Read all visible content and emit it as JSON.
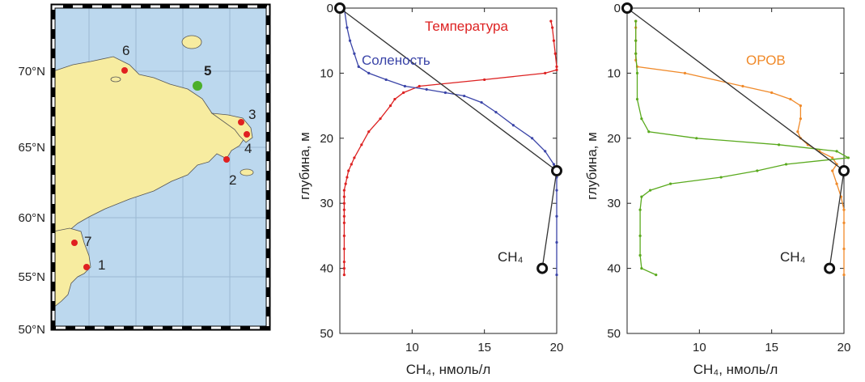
{
  "map": {
    "lat_ticks": [
      "70°N",
      "65°N",
      "60°N",
      "55°N",
      "50°N"
    ],
    "stations": [
      {
        "id": "1",
        "color": "#e02020"
      },
      {
        "id": "2",
        "color": "#e02020"
      },
      {
        "id": "3",
        "color": "#e02020"
      },
      {
        "id": "4",
        "color": "#e02020"
      },
      {
        "id": "5",
        "color": "#4caf2a"
      },
      {
        "id": "6",
        "color": "#e02020"
      },
      {
        "id": "7",
        "color": "#e02020"
      }
    ],
    "colors": {
      "land": "#f7eca0",
      "sea": "#bcd8ee",
      "frame": "#000000"
    }
  },
  "chart_data": [
    {
      "type": "line",
      "xlabel": "CH₄, нмоль/л",
      "ylabel": "глубина, м",
      "xlim": [
        5,
        20
      ],
      "ylim": [
        0,
        50
      ],
      "y_reversed": true,
      "xticks": [
        "10",
        "15",
        "20"
      ],
      "yticks": [
        "0",
        "10",
        "20",
        "30",
        "40",
        "50"
      ],
      "series": [
        {
          "name": "Температура",
          "color": "#dd2222",
          "x": [
            19.6,
            19.7,
            19.8,
            19.9,
            20.0,
            20.0,
            19.2,
            15.0,
            10.5,
            9.4,
            8.8,
            8.5,
            7.8,
            7.0,
            6.5,
            6.0,
            5.8,
            5.6,
            5.5,
            5.4,
            5.3,
            5.3,
            5.3,
            5.3,
            5.3,
            5.3,
            5.3,
            5.3,
            5.3,
            5.3,
            5.3
          ],
          "y": [
            2,
            3,
            5,
            7,
            9,
            9.5,
            10,
            11,
            12,
            13,
            14,
            15,
            17,
            19,
            21,
            23,
            24,
            25,
            26,
            27,
            28,
            29,
            30,
            31,
            32,
            33,
            35,
            37,
            39,
            40,
            41
          ]
        },
        {
          "name": "Соленость",
          "color": "#3b45a8",
          "x": [
            5.3,
            5.5,
            5.7,
            6.0,
            6.3,
            7.0,
            8.2,
            9.5,
            11.0,
            12.3,
            13.6,
            14.8,
            15.8,
            17.0,
            18.3,
            19.2,
            19.8,
            20.0,
            20.0,
            20.0,
            20.0,
            20.0
          ],
          "y": [
            0,
            3,
            5,
            7,
            9,
            10,
            11,
            12,
            12.5,
            13,
            13.5,
            14.5,
            16,
            18,
            20,
            22,
            24,
            26,
            28,
            32,
            36,
            41
          ]
        },
        {
          "name": "CH₄",
          "color": "#333333",
          "x": [
            5.0,
            20.0,
            19.0
          ],
          "y": [
            0,
            25,
            40
          ]
        }
      ]
    },
    {
      "type": "line",
      "xlabel": "CH₄, нмоль/л",
      "ylabel": "глубина, м",
      "xlim": [
        5,
        20
      ],
      "ylim": [
        0,
        50
      ],
      "y_reversed": true,
      "xticks": [
        "10",
        "15",
        "20"
      ],
      "yticks": [
        "0",
        "10",
        "20",
        "30",
        "40",
        "50"
      ],
      "series": [
        {
          "name": "ОРОВ",
          "color": "#f08a2a",
          "x": [
            5.6,
            5.6,
            5.6,
            5.6,
            5.6,
            5.7,
            9.0,
            13.0,
            15.0,
            16.3,
            17.0,
            17.0,
            16.8,
            17.0,
            17.5,
            18.3,
            19.2,
            19.5,
            19.2,
            19.5,
            19.8,
            20.0,
            20.0,
            20.0,
            20.0
          ],
          "y": [
            2,
            3,
            5,
            7,
            8,
            9,
            10,
            12,
            13,
            14,
            15,
            17,
            19,
            20,
            21,
            22,
            23,
            24,
            25,
            27,
            29,
            31,
            33,
            37,
            41
          ]
        },
        {
          "name": "",
          "color": "#5aaa1e",
          "x": [
            5.6,
            5.6,
            5.6,
            5.7,
            5.7,
            6.0,
            6.5,
            9.8,
            15.5,
            19.5,
            20.3,
            16.0,
            14.0,
            11.5,
            8.0,
            6.6,
            6.0,
            5.9,
            5.9,
            5.9,
            6.0,
            7.0
          ],
          "y": [
            2,
            5,
            7,
            10,
            14,
            17,
            19,
            20,
            21,
            22,
            23,
            24,
            25,
            26,
            27,
            28,
            29,
            31,
            35,
            38,
            40,
            41
          ]
        },
        {
          "name": "CH₄",
          "color": "#333333",
          "x": [
            5.0,
            20.0,
            19.0
          ],
          "y": [
            0,
            25,
            40
          ]
        }
      ]
    }
  ]
}
